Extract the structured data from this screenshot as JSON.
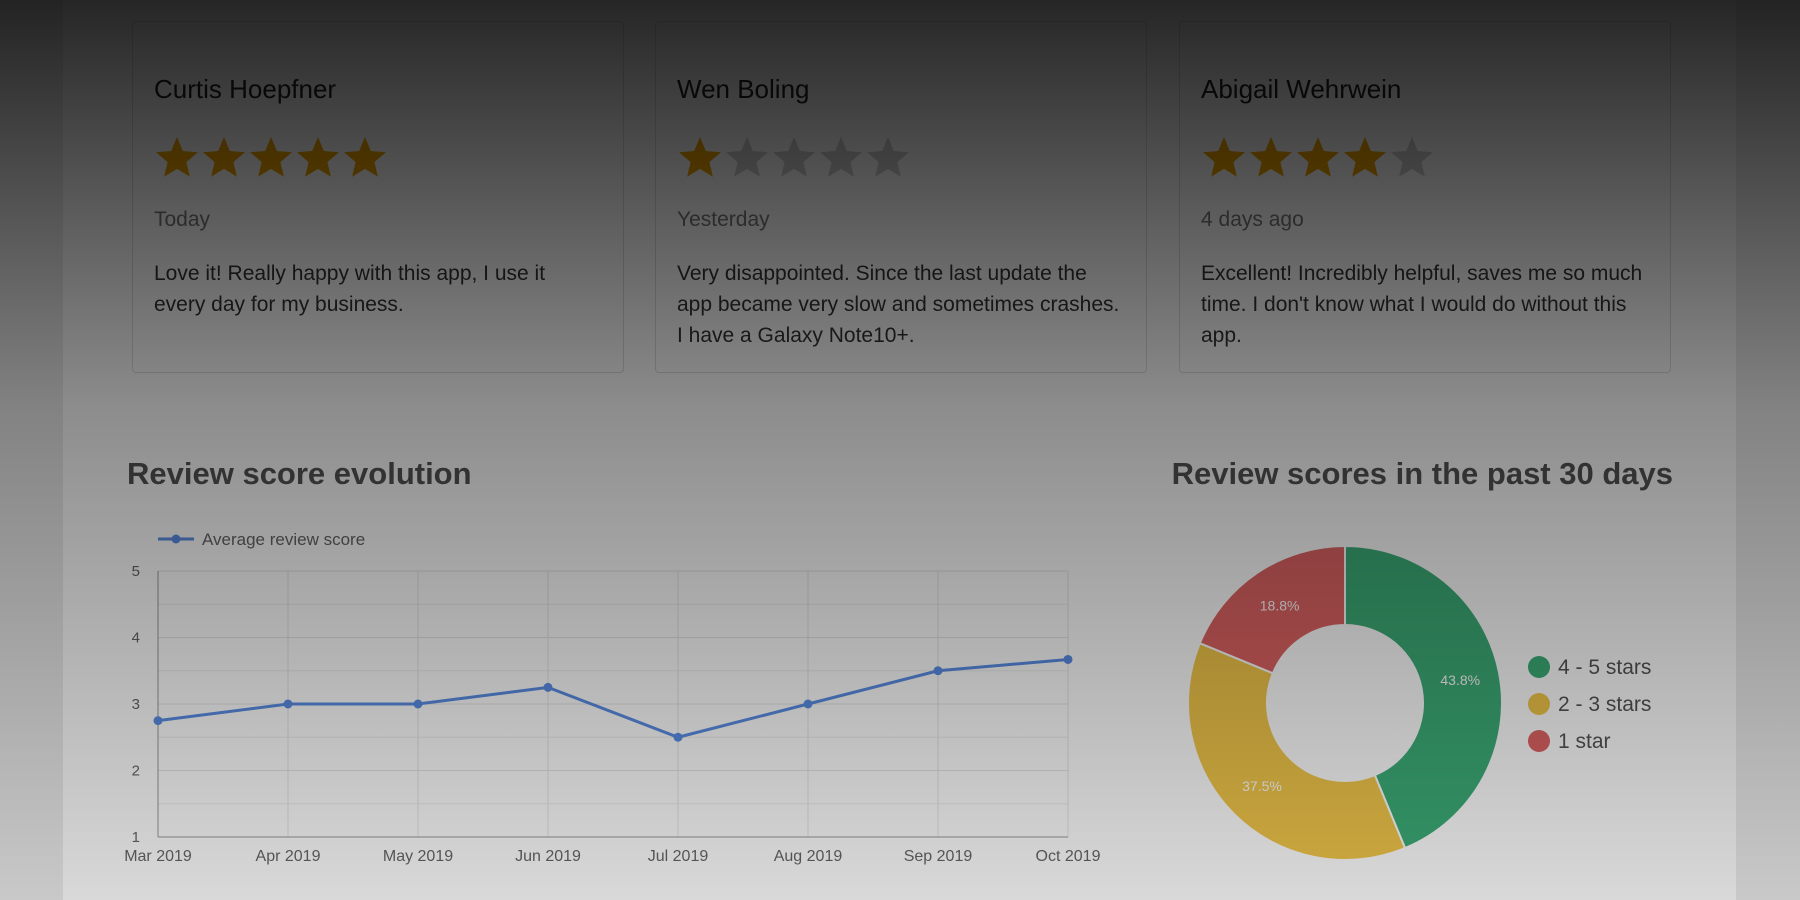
{
  "reviews": [
    {
      "name": "Curtis Hoepfner",
      "rating": 5,
      "date": "Today",
      "text": "Love it! Really happy with this app, I use it every day for my business."
    },
    {
      "name": "Wen Boling",
      "rating": 1,
      "date": "Yesterday",
      "text": "Very disappointed. Since the last update the app became very slow and sometimes crashes. I have a Galaxy Note10+."
    },
    {
      "name": "Abigail Wehrwein",
      "rating": 4,
      "date": "4 days ago",
      "text": "Excellent! Incredibly helpful, saves me so much time. I don't know what I would do without this app."
    }
  ],
  "chart_data": [
    {
      "type": "line",
      "title": "Review score evolution",
      "categories": [
        "Mar 2019",
        "Apr 2019",
        "May 2019",
        "Jun 2019",
        "Jul 2019",
        "Aug 2019",
        "Sep 2019",
        "Oct 2019"
      ],
      "series": [
        {
          "name": "Average review score",
          "color": "#5b8ee6",
          "values": [
            2.75,
            3,
            3,
            3.25,
            2.5,
            3,
            3.5,
            3.67
          ]
        }
      ],
      "ylim": [
        1,
        5
      ],
      "yticks": [
        1,
        2,
        3,
        4,
        5
      ],
      "grid": true,
      "legend": "top-left"
    },
    {
      "type": "donut",
      "title": "Review scores in the past 30 days",
      "categories": [
        "4 - 5 stars",
        "2 - 3 stars",
        "1 star"
      ],
      "values": [
        43.8,
        37.5,
        18.8
      ],
      "value_labels": [
        "43.8%",
        "37.5%",
        "18.8%"
      ],
      "colors": [
        "#3dae78",
        "#f2c74a",
        "#e06464"
      ],
      "legend": "right"
    }
  ]
}
